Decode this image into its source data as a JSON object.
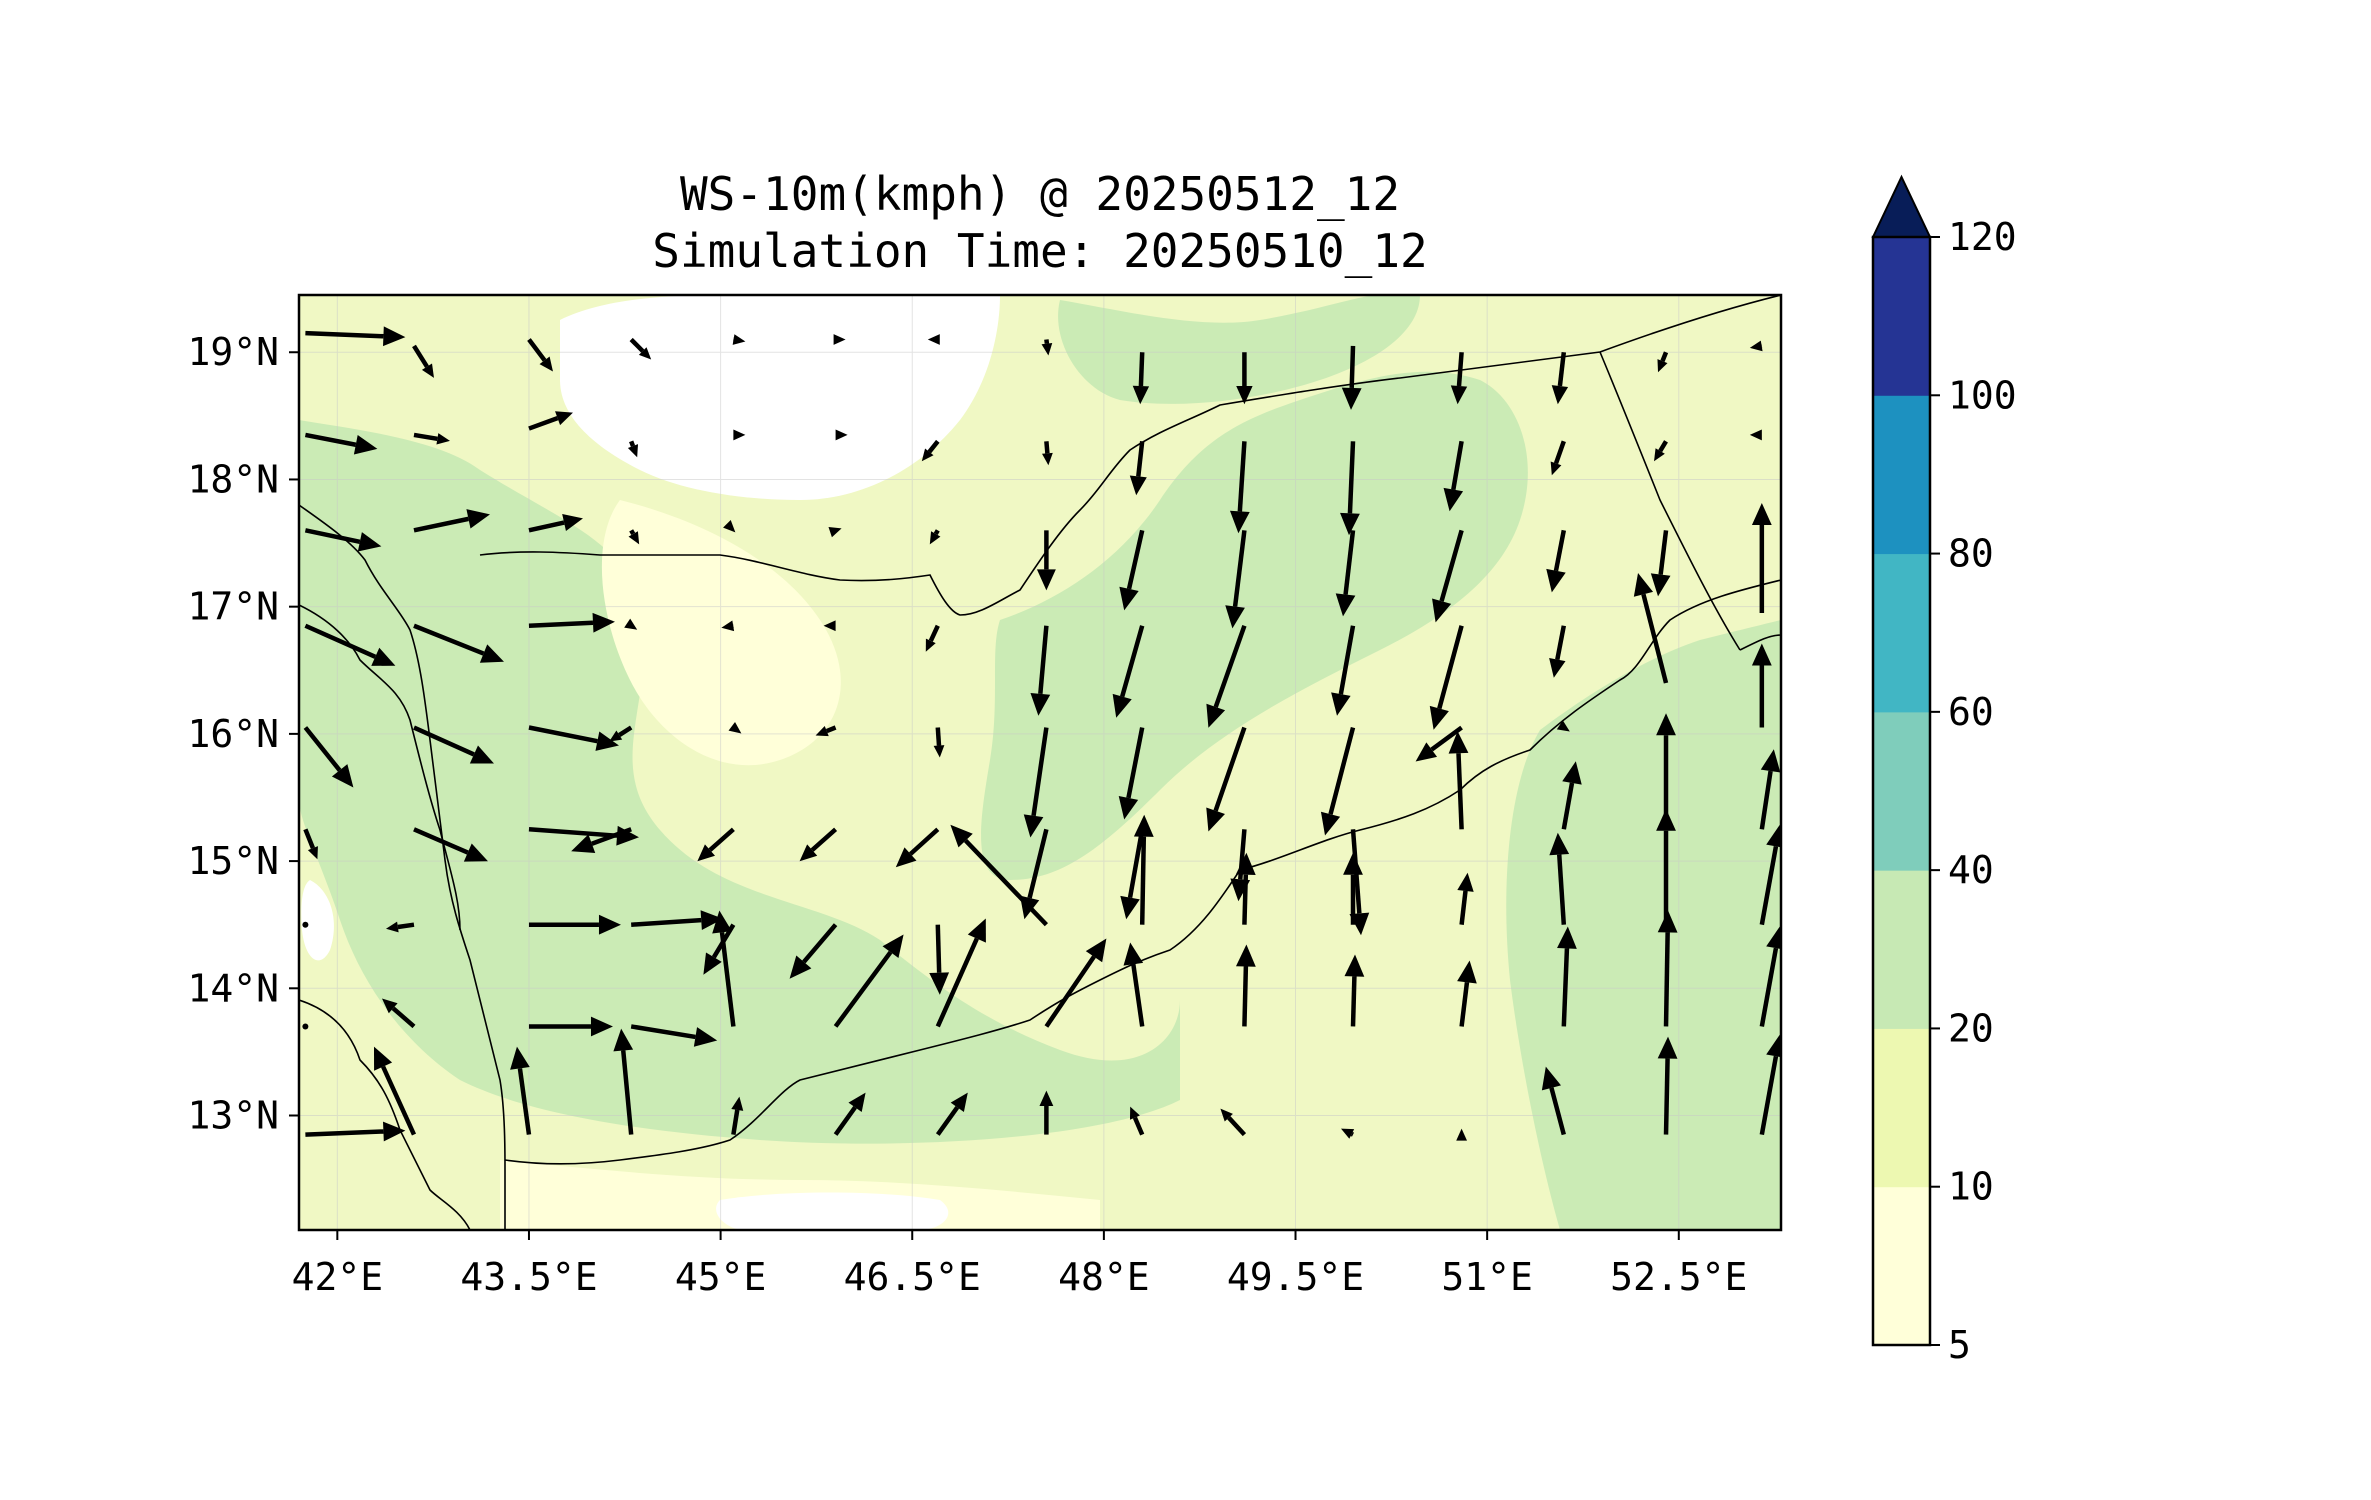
{
  "title": {
    "line1": "WS-10m(kmph) @ 20250512_12",
    "line2": "Simulation Time: 20250510_12"
  },
  "map": {
    "lon_range": [
      41.7,
      53.3
    ],
    "lat_range": [
      12.1,
      19.45
    ],
    "x_ticks": [
      "42°E",
      "43.5°E",
      "45°E",
      "46.5°E",
      "48°E",
      "49.5°E",
      "51°E",
      "52.5°E"
    ],
    "x_tick_values": [
      42,
      43.5,
      45,
      46.5,
      48,
      49.5,
      51,
      52.5
    ],
    "y_ticks": [
      "19°N",
      "18°N",
      "17°N",
      "16°N",
      "15°N",
      "14°N",
      "13°N"
    ],
    "y_tick_values": [
      19,
      18,
      17,
      16,
      15,
      14,
      13
    ],
    "background": "#f0f8c4"
  },
  "colorbar": {
    "levels": [
      "5",
      "10",
      "20",
      "40",
      "60",
      "80",
      "100",
      "120"
    ],
    "colors": [
      "#ffffd9",
      "#edf8b1",
      "#c7e9b4",
      "#7fcdbb",
      "#41b6c4",
      "#1d91c0",
      "#253494",
      "#081d58"
    ],
    "extend": "max"
  },
  "chart_data": {
    "type": "quiver",
    "variable": "WS-10m(kmph)",
    "units": "kmph",
    "x_label": "",
    "y_label": "",
    "arrows": [
      {
        "lon": 41.75,
        "lat": 19.15,
        "u": 5.0,
        "v": -0.2
      },
      {
        "lon": 42.6,
        "lat": 19.05,
        "u": 1.0,
        "v": -1.6
      },
      {
        "lon": 43.5,
        "lat": 19.1,
        "u": 1.2,
        "v": -1.6
      },
      {
        "lon": 44.3,
        "lat": 19.1,
        "u": 1.0,
        "v": -1.0
      },
      {
        "lon": 45.1,
        "lat": 19.1,
        "u": 0.6,
        "v": -0.1
      },
      {
        "lon": 45.9,
        "lat": 19.1,
        "u": 0.5,
        "v": 0.0
      },
      {
        "lon": 46.7,
        "lat": 19.1,
        "u": -0.5,
        "v": 0.0
      },
      {
        "lon": 47.55,
        "lat": 19.1,
        "u": 0.1,
        "v": -0.8
      },
      {
        "lon": 48.3,
        "lat": 19.0,
        "u": -0.1,
        "v": -2.6
      },
      {
        "lon": 49.1,
        "lat": 19.0,
        "u": 0.0,
        "v": -2.6
      },
      {
        "lon": 49.95,
        "lat": 19.05,
        "u": -0.1,
        "v": -3.2
      },
      {
        "lon": 50.8,
        "lat": 19.0,
        "u": -0.2,
        "v": -2.6
      },
      {
        "lon": 51.6,
        "lat": 19.0,
        "u": -0.3,
        "v": -2.6
      },
      {
        "lon": 52.4,
        "lat": 19.0,
        "u": -0.4,
        "v": -1.0
      },
      {
        "lon": 53.15,
        "lat": 19.05,
        "u": -0.6,
        "v": -0.1
      },
      {
        "lon": 41.75,
        "lat": 18.35,
        "u": 3.6,
        "v": -0.7
      },
      {
        "lon": 42.6,
        "lat": 18.35,
        "u": 1.8,
        "v": -0.3
      },
      {
        "lon": 43.5,
        "lat": 18.4,
        "u": 2.2,
        "v": 0.8
      },
      {
        "lon": 44.3,
        "lat": 18.3,
        "u": 0.3,
        "v": -0.8
      },
      {
        "lon": 45.1,
        "lat": 18.35,
        "u": 0.6,
        "v": 0.0
      },
      {
        "lon": 45.9,
        "lat": 18.35,
        "u": 0.6,
        "v": 0.0
      },
      {
        "lon": 46.7,
        "lat": 18.3,
        "u": -0.8,
        "v": -1.0
      },
      {
        "lon": 47.55,
        "lat": 18.3,
        "u": 0.1,
        "v": -1.2
      },
      {
        "lon": 48.3,
        "lat": 18.3,
        "u": -0.3,
        "v": -2.7
      },
      {
        "lon": 49.1,
        "lat": 18.3,
        "u": -0.3,
        "v": -4.6
      },
      {
        "lon": 49.95,
        "lat": 18.3,
        "u": -0.2,
        "v": -4.7
      },
      {
        "lon": 50.8,
        "lat": 18.3,
        "u": -0.6,
        "v": -3.5
      },
      {
        "lon": 51.6,
        "lat": 18.3,
        "u": -0.6,
        "v": -1.7
      },
      {
        "lon": 52.4,
        "lat": 18.3,
        "u": -0.6,
        "v": -1.0
      },
      {
        "lon": 53.15,
        "lat": 18.35,
        "u": -0.6,
        "v": 0.0
      },
      {
        "lon": 41.75,
        "lat": 17.6,
        "u": 3.8,
        "v": -0.8
      },
      {
        "lon": 42.6,
        "lat": 17.6,
        "u": 3.8,
        "v": 0.8
      },
      {
        "lon": 43.5,
        "lat": 17.6,
        "u": 2.7,
        "v": 0.6
      },
      {
        "lon": 44.3,
        "lat": 17.6,
        "u": 0.4,
        "v": -0.7
      },
      {
        "lon": 45.1,
        "lat": 17.6,
        "u": 0.1,
        "v": -0.1
      },
      {
        "lon": 45.9,
        "lat": 17.6,
        "u": 0.3,
        "v": 0.1
      },
      {
        "lon": 46.7,
        "lat": 17.6,
        "u": -0.4,
        "v": -0.7
      },
      {
        "lon": 47.55,
        "lat": 17.6,
        "u": 0.0,
        "v": -3.0
      },
      {
        "lon": 48.3,
        "lat": 17.6,
        "u": -0.9,
        "v": -4.0
      },
      {
        "lon": 49.1,
        "lat": 17.6,
        "u": -0.6,
        "v": -4.9
      },
      {
        "lon": 49.95,
        "lat": 17.6,
        "u": -0.5,
        "v": -4.3
      },
      {
        "lon": 50.8,
        "lat": 17.6,
        "u": -1.3,
        "v": -4.6
      },
      {
        "lon": 51.6,
        "lat": 17.6,
        "u": -0.6,
        "v": -3.1
      },
      {
        "lon": 52.4,
        "lat": 17.6,
        "u": -0.4,
        "v": -3.3
      },
      {
        "lon": 53.15,
        "lat": 16.95,
        "u": 0.0,
        "v": 5.5
      },
      {
        "lon": 41.75,
        "lat": 16.85,
        "u": 4.5,
        "v": -2.0
      },
      {
        "lon": 42.6,
        "lat": 16.85,
        "u": 4.5,
        "v": -1.8
      },
      {
        "lon": 43.5,
        "lat": 16.85,
        "u": 4.3,
        "v": 0.2
      },
      {
        "lon": 44.3,
        "lat": 16.85,
        "u": 0.3,
        "v": -0.2
      },
      {
        "lon": 45.1,
        "lat": 16.85,
        "u": -0.6,
        "v": -0.1
      },
      {
        "lon": 45.9,
        "lat": 16.85,
        "u": -0.6,
        "v": 0.0
      },
      {
        "lon": 46.7,
        "lat": 16.85,
        "u": -0.6,
        "v": -1.3
      },
      {
        "lon": 47.55,
        "lat": 16.85,
        "u": -0.4,
        "v": -4.5
      },
      {
        "lon": 48.3,
        "lat": 16.85,
        "u": -1.3,
        "v": -4.6
      },
      {
        "lon": 49.1,
        "lat": 16.85,
        "u": -1.8,
        "v": -5.1
      },
      {
        "lon": 49.95,
        "lat": 16.85,
        "u": -0.8,
        "v": -4.5
      },
      {
        "lon": 50.8,
        "lat": 16.85,
        "u": -1.4,
        "v": -5.2
      },
      {
        "lon": 51.6,
        "lat": 16.85,
        "u": -0.5,
        "v": -2.6
      },
      {
        "lon": 52.4,
        "lat": 16.4,
        "u": -1.4,
        "v": 5.5
      },
      {
        "lon": 53.15,
        "lat": 16.05,
        "u": 0.0,
        "v": 4.2
      },
      {
        "lon": 41.75,
        "lat": 16.05,
        "u": 2.4,
        "v": -3.0
      },
      {
        "lon": 42.6,
        "lat": 16.05,
        "u": 4.0,
        "v": -1.8
      },
      {
        "lon": 43.5,
        "lat": 16.05,
        "u": 4.5,
        "v": -0.9
      },
      {
        "lon": 44.3,
        "lat": 16.05,
        "u": -1.1,
        "v": -0.7
      },
      {
        "lon": 45.1,
        "lat": 16.05,
        "u": 0.4,
        "v": -0.3
      },
      {
        "lon": 45.9,
        "lat": 16.05,
        "u": -1.0,
        "v": -0.4
      },
      {
        "lon": 46.7,
        "lat": 16.05,
        "u": 0.1,
        "v": -1.5
      },
      {
        "lon": 47.55,
        "lat": 16.05,
        "u": -0.8,
        "v": -5.5
      },
      {
        "lon": 48.3,
        "lat": 16.05,
        "u": -0.9,
        "v": -4.6
      },
      {
        "lon": 49.1,
        "lat": 16.05,
        "u": -1.8,
        "v": -5.2
      },
      {
        "lon": 49.95,
        "lat": 16.05,
        "u": -1.4,
        "v": -5.4
      },
      {
        "lon": 50.8,
        "lat": 16.05,
        "u": -2.3,
        "v": -1.7
      },
      {
        "lon": 51.6,
        "lat": 16.05,
        "u": 0.3,
        "v": -0.2
      },
      {
        "lon": 52.4,
        "lat": 15.25,
        "u": 0.0,
        "v": 5.8
      },
      {
        "lon": 53.15,
        "lat": 15.25,
        "u": 0.6,
        "v": 4.0
      },
      {
        "lon": 41.75,
        "lat": 15.25,
        "u": 0.6,
        "v": -1.5
      },
      {
        "lon": 42.6,
        "lat": 15.25,
        "u": 3.7,
        "v": -1.6
      },
      {
        "lon": 43.5,
        "lat": 15.25,
        "u": 5.5,
        "v": -0.4
      },
      {
        "lon": 44.3,
        "lat": 15.25,
        "u": -3.0,
        "v": -1.1
      },
      {
        "lon": 45.1,
        "lat": 15.25,
        "u": -1.8,
        "v": -1.6
      },
      {
        "lon": 45.9,
        "lat": 15.25,
        "u": -1.8,
        "v": -1.6
      },
      {
        "lon": 46.7,
        "lat": 15.25,
        "u": -2.1,
        "v": -1.9
      },
      {
        "lon": 47.55,
        "lat": 15.25,
        "u": -1.1,
        "v": -4.5
      },
      {
        "lon": 48.3,
        "lat": 15.25,
        "u": -0.8,
        "v": -4.5
      },
      {
        "lon": 49.1,
        "lat": 15.25,
        "u": -0.3,
        "v": -3.6
      },
      {
        "lon": 49.95,
        "lat": 15.25,
        "u": 0.4,
        "v": -5.3
      },
      {
        "lon": 50.8,
        "lat": 15.25,
        "u": -0.2,
        "v": 4.9
      },
      {
        "lon": 51.6,
        "lat": 15.25,
        "u": 0.6,
        "v": 3.4
      },
      {
        "lon": 41.75,
        "lat": 14.5,
        "u": 0.0,
        "v": 0.0
      },
      {
        "lon": 42.6,
        "lat": 14.5,
        "u": -1.4,
        "v": -0.2
      },
      {
        "lon": 43.5,
        "lat": 14.5,
        "u": 4.6,
        "v": 0.0
      },
      {
        "lon": 44.3,
        "lat": 14.5,
        "u": 4.6,
        "v": 0.3
      },
      {
        "lon": 45.1,
        "lat": 14.5,
        "u": -1.5,
        "v": -2.5
      },
      {
        "lon": 45.9,
        "lat": 14.5,
        "u": -2.3,
        "v": -2.7
      },
      {
        "lon": 46.7,
        "lat": 14.5,
        "u": 0.1,
        "v": -3.5
      },
      {
        "lon": 47.55,
        "lat": 14.5,
        "u": -4.8,
        "v": 5.0
      },
      {
        "lon": 48.3,
        "lat": 14.5,
        "u": 0.1,
        "v": 5.5
      },
      {
        "lon": 49.1,
        "lat": 14.5,
        "u": 0.1,
        "v": 3.6
      },
      {
        "lon": 49.95,
        "lat": 14.5,
        "u": 0.0,
        "v": 3.6
      },
      {
        "lon": 50.8,
        "lat": 14.5,
        "u": 0.3,
        "v": 2.6
      },
      {
        "lon": 51.6,
        "lat": 14.5,
        "u": -0.3,
        "v": 4.6
      },
      {
        "lon": 52.4,
        "lat": 14.5,
        "u": 0.0,
        "v": 5.8
      },
      {
        "lon": 53.15,
        "lat": 14.5,
        "u": 0.9,
        "v": 5.0
      },
      {
        "lon": 41.75,
        "lat": 13.7,
        "u": 0.0,
        "v": 0.0
      },
      {
        "lon": 42.6,
        "lat": 13.7,
        "u": -1.6,
        "v": 1.4
      },
      {
        "lon": 43.5,
        "lat": 13.7,
        "u": 4.2,
        "v": 0.0
      },
      {
        "lon": 44.3,
        "lat": 13.7,
        "u": 4.3,
        "v": -0.7
      },
      {
        "lon": 45.1,
        "lat": 13.7,
        "u": -0.7,
        "v": 5.8
      },
      {
        "lon": 45.9,
        "lat": 13.7,
        "u": 3.4,
        "v": 4.6
      },
      {
        "lon": 46.7,
        "lat": 13.7,
        "u": 2.4,
        "v": 5.4
      },
      {
        "lon": 47.55,
        "lat": 13.7,
        "u": 3.0,
        "v": 4.4
      },
      {
        "lon": 48.3,
        "lat": 13.7,
        "u": -0.6,
        "v": 4.2
      },
      {
        "lon": 49.1,
        "lat": 13.7,
        "u": 0.1,
        "v": 4.1
      },
      {
        "lon": 49.95,
        "lat": 13.7,
        "u": 0.1,
        "v": 3.6
      },
      {
        "lon": 50.8,
        "lat": 13.7,
        "u": 0.4,
        "v": 3.3
      },
      {
        "lon": 51.6,
        "lat": 13.7,
        "u": 0.2,
        "v": 5.0
      },
      {
        "lon": 52.4,
        "lat": 13.7,
        "u": 0.1,
        "v": 5.8
      },
      {
        "lon": 53.15,
        "lat": 13.7,
        "u": 0.9,
        "v": 5.0
      },
      {
        "lon": 41.75,
        "lat": 12.85,
        "u": 5.0,
        "v": 0.2
      },
      {
        "lon": 42.6,
        "lat": 12.85,
        "u": -2.0,
        "v": 4.4
      },
      {
        "lon": 43.5,
        "lat": 12.85,
        "u": -0.6,
        "v": 4.4
      },
      {
        "lon": 44.3,
        "lat": 12.85,
        "u": -0.5,
        "v": 5.3
      },
      {
        "lon": 45.1,
        "lat": 12.85,
        "u": 0.3,
        "v": 1.9
      },
      {
        "lon": 45.9,
        "lat": 12.85,
        "u": 1.5,
        "v": 2.1
      },
      {
        "lon": 46.7,
        "lat": 12.85,
        "u": 1.5,
        "v": 2.1
      },
      {
        "lon": 47.55,
        "lat": 12.85,
        "u": 0.0,
        "v": 2.2
      },
      {
        "lon": 48.3,
        "lat": 12.85,
        "u": -0.6,
        "v": 1.4
      },
      {
        "lon": 49.1,
        "lat": 12.85,
        "u": -1.2,
        "v": 1.3
      },
      {
        "lon": 49.95,
        "lat": 12.85,
        "u": -0.6,
        "v": 0.3
      },
      {
        "lon": 50.8,
        "lat": 12.85,
        "u": 0.0,
        "v": 0.3
      },
      {
        "lon": 51.6,
        "lat": 12.85,
        "u": -0.9,
        "v": 3.4
      },
      {
        "lon": 52.4,
        "lat": 12.85,
        "u": 0.1,
        "v": 4.9
      },
      {
        "lon": 53.15,
        "lat": 12.85,
        "u": 0.9,
        "v": 5.0
      }
    ]
  }
}
